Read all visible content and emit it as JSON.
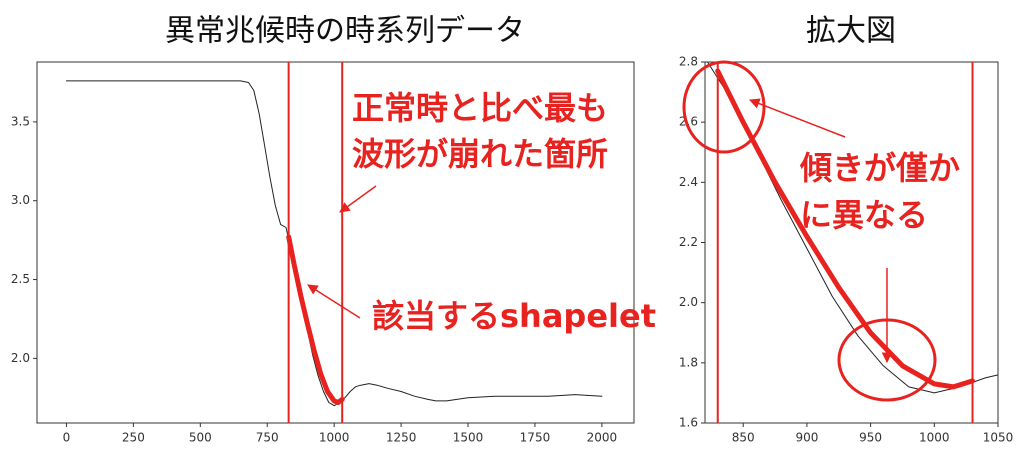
{
  "chart_data": [
    {
      "type": "line",
      "title": "異常兆候時の時系列データ",
      "xlim": [
        -110,
        2120
      ],
      "ylim": [
        1.59,
        3.88
      ],
      "xticks": [
        0,
        250,
        500,
        750,
        1000,
        1250,
        1500,
        1750,
        2000
      ],
      "yticks": [
        {
          "value": 2,
          "label": "2.0"
        },
        2.5,
        {
          "value": 3,
          "label": "3.0"
        },
        3.5
      ],
      "vlines": [
        830,
        1030
      ],
      "vline_color": "#e8231f",
      "annotations": [
        "正常時と比べ最も",
        "波形が崩れた箇所",
        "該当するshapelet"
      ],
      "series": [
        {
          "color": "#222222",
          "linewidth": 1,
          "x": [
            0,
            100,
            200,
            300,
            400,
            500,
            600,
            650,
            680,
            700,
            720,
            740,
            760,
            780,
            800,
            820,
            840,
            860,
            880,
            900,
            920,
            940,
            960,
            980,
            1000,
            1020,
            1040,
            1060,
            1080,
            1100,
            1130,
            1160,
            1200,
            1250,
            1300,
            1350,
            1380,
            1420,
            1500,
            1600,
            1700,
            1800,
            1900,
            2000
          ],
          "values": [
            3.76,
            3.76,
            3.76,
            3.76,
            3.76,
            3.76,
            3.76,
            3.76,
            3.75,
            3.7,
            3.55,
            3.35,
            3.15,
            2.97,
            2.85,
            2.83,
            2.68,
            2.51,
            2.34,
            2.18,
            2.02,
            1.89,
            1.79,
            1.72,
            1.7,
            1.72,
            1.75,
            1.79,
            1.82,
            1.83,
            1.84,
            1.83,
            1.81,
            1.79,
            1.76,
            1.74,
            1.73,
            1.73,
            1.75,
            1.76,
            1.76,
            1.76,
            1.77,
            1.76
          ]
        },
        {
          "color": "#e8231f",
          "linewidth": 5,
          "x": [
            830,
            850,
            875,
            900,
            925,
            950,
            975,
            1000,
            1015,
            1030
          ],
          "values": [
            2.77,
            2.6,
            2.4,
            2.22,
            2.05,
            1.9,
            1.79,
            1.73,
            1.72,
            1.74
          ]
        }
      ]
    },
    {
      "type": "line",
      "title": "拡大図",
      "xlim": [
        820,
        1050
      ],
      "ylim": [
        1.6,
        2.8
      ],
      "xticks": [
        850,
        900,
        950,
        1000,
        1050
      ],
      "yticks": [
        1.6,
        1.8,
        {
          "value": 2,
          "label": "2.0"
        },
        2.2,
        2.4,
        2.6,
        2.8
      ],
      "vlines": [
        830,
        1030
      ],
      "vline_color": "#e8231f",
      "annotations": [
        "傾きが僅か",
        "に異なる"
      ],
      "series": [
        {
          "color": "#222222",
          "linewidth": 1,
          "x": [
            822,
            840,
            860,
            880,
            900,
            920,
            940,
            960,
            980,
            1000,
            1020,
            1040,
            1050
          ],
          "values": [
            2.8,
            2.68,
            2.51,
            2.34,
            2.18,
            2.02,
            1.89,
            1.79,
            1.72,
            1.7,
            1.72,
            1.75,
            1.76
          ]
        },
        {
          "color": "#e8231f",
          "linewidth": 5,
          "x": [
            830,
            850,
            875,
            900,
            925,
            950,
            975,
            1000,
            1015,
            1030
          ],
          "values": [
            2.77,
            2.6,
            2.4,
            2.22,
            2.05,
            1.9,
            1.79,
            1.73,
            1.72,
            1.74
          ]
        }
      ]
    }
  ]
}
